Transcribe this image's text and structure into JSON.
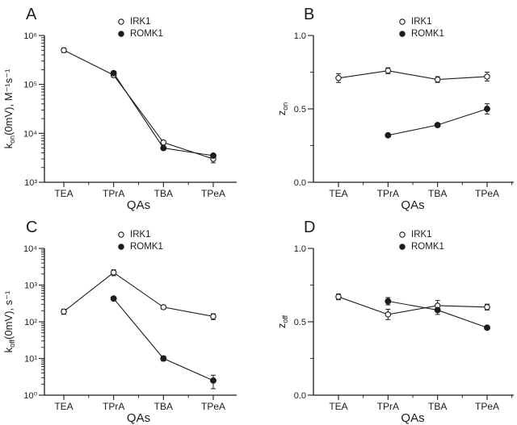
{
  "figure": {
    "background": "#ffffff",
    "ink_color": "#1c1c1c",
    "panel_labels": [
      "A",
      "B",
      "C",
      "D"
    ]
  },
  "chart_data": [
    {
      "panel": "A",
      "type": "line",
      "yscale": "log",
      "categories": [
        "TEA",
        "TPrA",
        "TBA",
        "TPeA"
      ],
      "xlabel": "QAs",
      "ylabel": {
        "pre": "k",
        "sub": "on",
        "post": "(0mV), M⁻¹s⁻¹"
      },
      "ylim": [
        1000,
        1000000
      ],
      "yticks": [
        {
          "exp": 3,
          "label": "10³"
        },
        {
          "exp": 4,
          "label": "10⁴"
        },
        {
          "exp": 5,
          "label": "10⁵"
        },
        {
          "exp": 6,
          "label": "10⁶"
        }
      ],
      "legend_position": "top-center",
      "grid": false,
      "series": [
        {
          "name": "IRK1",
          "marker": "open-circle",
          "values": [
            500000,
            155000,
            6500,
            3000
          ],
          "errors": [
            50000,
            15000,
            600,
            500
          ]
        },
        {
          "name": "ROMK1",
          "marker": "filled-circle",
          "values": [
            null,
            170000,
            5000,
            3500
          ],
          "errors": [
            null,
            15000,
            400,
            300
          ]
        }
      ]
    },
    {
      "panel": "B",
      "type": "line",
      "yscale": "linear",
      "categories": [
        "TEA",
        "TPrA",
        "TBA",
        "TPeA"
      ],
      "xlabel": "QAs",
      "ylabel": {
        "pre": "z",
        "sub": "on",
        "post": ""
      },
      "ylim": [
        0.0,
        1.0
      ],
      "yticks": [
        {
          "v": 0.0,
          "label": "0.0"
        },
        {
          "v": 0.5,
          "label": "0.5"
        },
        {
          "v": 1.0,
          "label": "1.0"
        }
      ],
      "yticks_minor": [
        0.25,
        0.75
      ],
      "legend_position": "top-center",
      "grid": false,
      "series": [
        {
          "name": "IRK1",
          "marker": "open-circle",
          "values": [
            0.71,
            0.76,
            0.7,
            0.72
          ],
          "errors": [
            0.03,
            0.02,
            0.02,
            0.03
          ]
        },
        {
          "name": "ROMK1",
          "marker": "filled-circle",
          "values": [
            null,
            0.32,
            0.39,
            0.5
          ],
          "errors": [
            null,
            0.01,
            0.01,
            0.035
          ]
        }
      ]
    },
    {
      "panel": "C",
      "type": "line",
      "yscale": "log",
      "categories": [
        "TEA",
        "TPrA",
        "TBA",
        "TPeA"
      ],
      "xlabel": "QAs",
      "ylabel": {
        "pre": "k",
        "sub": "off",
        "post": "(0mV), s⁻¹"
      },
      "ylim": [
        1,
        10000
      ],
      "yticks": [
        {
          "exp": 0,
          "label": "10⁰"
        },
        {
          "exp": 1,
          "label": "10¹"
        },
        {
          "exp": 2,
          "label": "10²"
        },
        {
          "exp": 3,
          "label": "10³"
        },
        {
          "exp": 4,
          "label": "10⁴"
        }
      ],
      "legend_position": "top-center",
      "grid": false,
      "series": [
        {
          "name": "IRK1",
          "marker": "open-circle",
          "values": [
            190,
            2200,
            250,
            140
          ],
          "errors": [
            30,
            400,
            30,
            25
          ]
        },
        {
          "name": "ROMK1",
          "marker": "filled-circle",
          "values": [
            null,
            430,
            10,
            2.5
          ],
          "errors": [
            null,
            50,
            1.5,
            1.0
          ]
        }
      ]
    },
    {
      "panel": "D",
      "type": "line",
      "yscale": "linear",
      "categories": [
        "TEA",
        "TPrA",
        "TBA",
        "TPeA"
      ],
      "xlabel": "QAs",
      "ylabel": {
        "pre": "z",
        "sub": "off",
        "post": ""
      },
      "ylim": [
        0.0,
        1.0
      ],
      "yticks": [
        {
          "v": 0.0,
          "label": "0.0"
        },
        {
          "v": 0.5,
          "label": "0.5"
        },
        {
          "v": 1.0,
          "label": "1.0"
        }
      ],
      "yticks_minor": [
        0.25,
        0.75
      ],
      "legend_position": "top-center",
      "grid": false,
      "series": [
        {
          "name": "IRK1",
          "marker": "open-circle",
          "values": [
            0.67,
            0.55,
            0.61,
            0.6
          ],
          "errors": [
            0.02,
            0.035,
            0.035,
            0.02
          ]
        },
        {
          "name": "ROMK1",
          "marker": "filled-circle",
          "values": [
            null,
            0.64,
            0.58,
            0.46
          ],
          "errors": [
            null,
            0.025,
            0.03,
            0.01
          ]
        }
      ]
    }
  ]
}
